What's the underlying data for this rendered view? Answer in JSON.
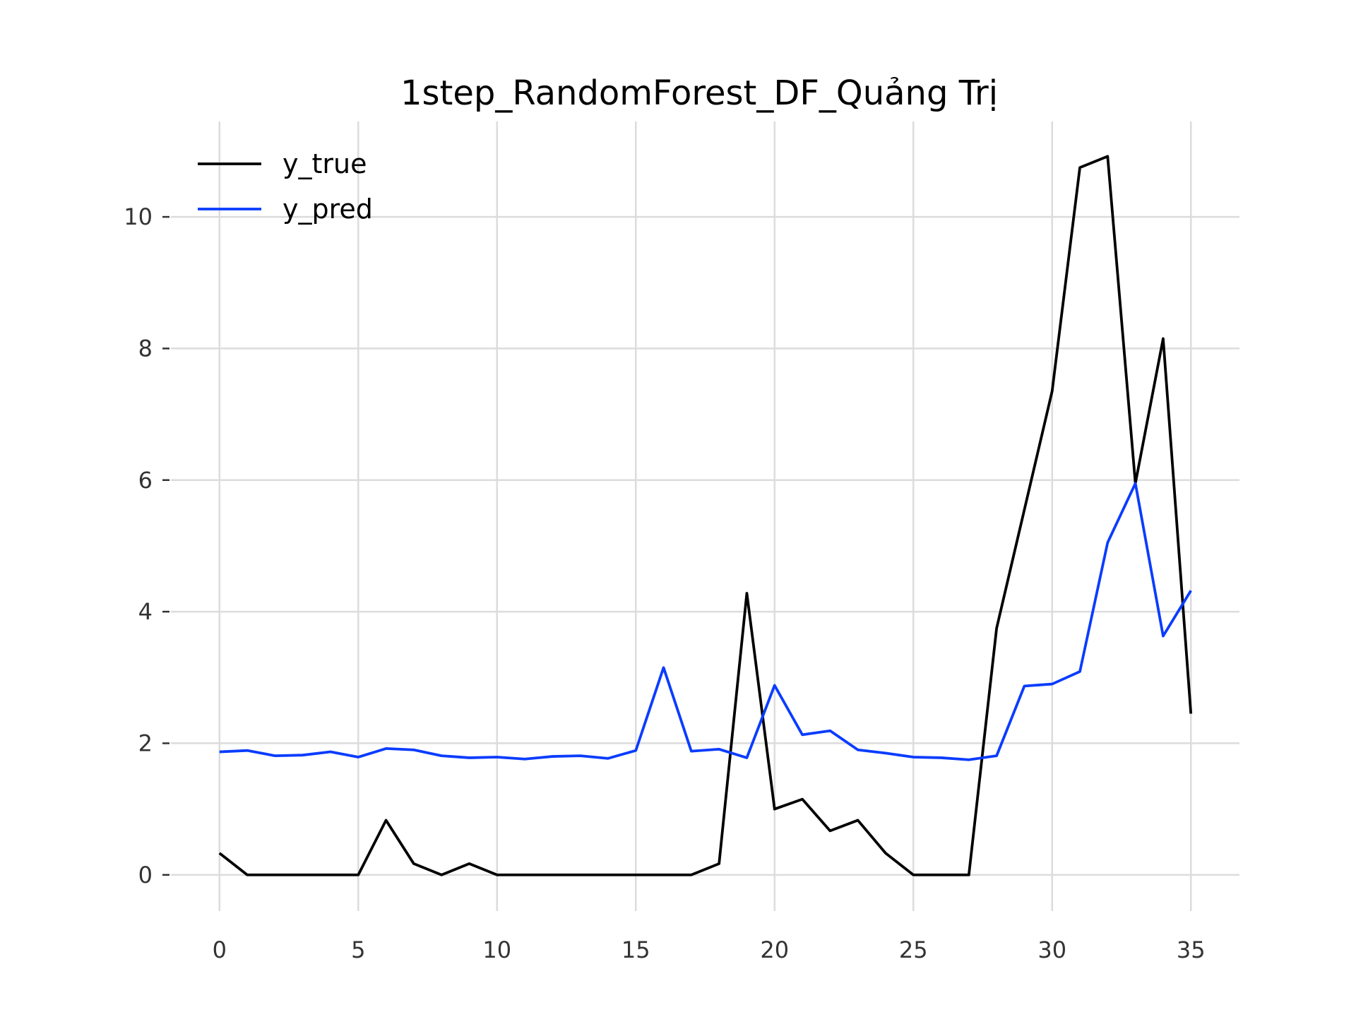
{
  "chart_data": {
    "type": "line",
    "title": "1step_RandomForest_DF_Quảng Trị",
    "xlabel": "",
    "ylabel": "",
    "xlim": [
      -1.75,
      36.75
    ],
    "ylim": [
      -0.55,
      11.45
    ],
    "xticks": [
      0,
      5,
      10,
      15,
      20,
      25,
      30,
      35
    ],
    "yticks": [
      0,
      2,
      4,
      6,
      8,
      10
    ],
    "grid": true,
    "legend_position": "top-left",
    "x": [
      0,
      1,
      2,
      3,
      4,
      5,
      6,
      7,
      8,
      9,
      10,
      11,
      12,
      13,
      14,
      15,
      16,
      17,
      18,
      19,
      20,
      21,
      22,
      23,
      24,
      25,
      26,
      27,
      28,
      29,
      30,
      31,
      32,
      33,
      34,
      35
    ],
    "series": [
      {
        "name": "y_true",
        "color": "#000000",
        "values": [
          0.33,
          0,
          0,
          0,
          0,
          0,
          0.83,
          0.17,
          0,
          0.17,
          0,
          0,
          0,
          0,
          0,
          0,
          0,
          0,
          0.17,
          4.28,
          1.0,
          1.15,
          0.67,
          0.83,
          0.33,
          0,
          0,
          0,
          3.75,
          5.55,
          7.35,
          10.75,
          10.92,
          5.95,
          8.15,
          2.45
        ]
      },
      {
        "name": "y_pred",
        "color": "#0a3cff",
        "values": [
          1.87,
          1.89,
          1.81,
          1.82,
          1.87,
          1.79,
          1.92,
          1.9,
          1.81,
          1.78,
          1.79,
          1.76,
          1.8,
          1.81,
          1.77,
          1.89,
          3.15,
          1.88,
          1.91,
          1.78,
          2.88,
          2.13,
          2.19,
          1.9,
          1.85,
          1.79,
          1.78,
          1.75,
          1.81,
          2.87,
          2.9,
          3.09,
          5.05,
          5.95,
          3.63,
          4.32
        ]
      }
    ]
  }
}
